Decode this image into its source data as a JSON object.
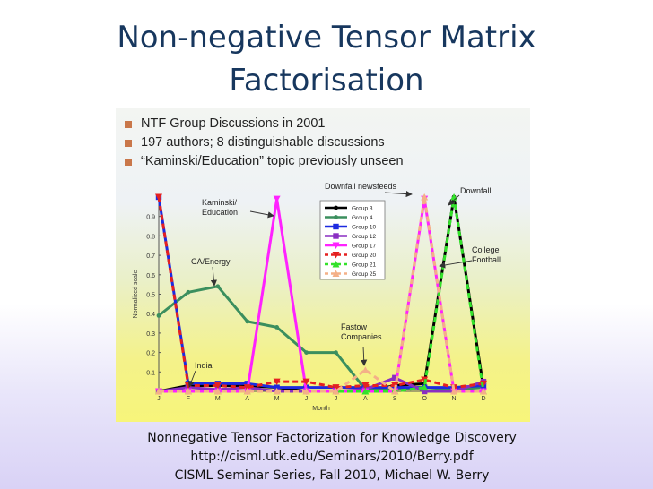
{
  "slide": {
    "title_line1": "Non-negative Tensor Matrix",
    "title_line2": "Factorisation",
    "bullets": [
      "NTF Group Discussions in 2001",
      "197 authors; 8 distinguishable discussions",
      "“Kaminski/Education” topic previously unseen"
    ],
    "caption_line1": "Nonnegative Tensor Factorization for Knowledge Discovery",
    "caption_line2": "http://cisml.utk.edu/Seminars/2010/Berry.pdf",
    "caption_line3": "CISML Seminar Series, Fall 2010, Michael W. Berry",
    "colors": {
      "title": "#17375e",
      "bullet_square": "#c9774a"
    }
  },
  "chart_data": {
    "type": "line",
    "title": "",
    "xlabel": "Month",
    "ylabel": "Normalized scale",
    "categories": [
      "J",
      "F",
      "M",
      "A",
      "M",
      "J",
      "J",
      "A",
      "S",
      "O",
      "N",
      "D"
    ],
    "yticks": [
      "0.1",
      "0.2",
      "0.3",
      "0.4",
      "0.5",
      "0.6",
      "0.7",
      "0.8",
      "0.9"
    ],
    "ylim": [
      0,
      1
    ],
    "grid": false,
    "legend_position": "top-center",
    "series": [
      {
        "name": "Group 3",
        "color": "#000000",
        "dash": false,
        "marker": "circle",
        "values": [
          0.0,
          0.03,
          0.03,
          0.03,
          0.02,
          0.0,
          0.0,
          0.0,
          0.03,
          0.04,
          1.0,
          0.02
        ]
      },
      {
        "name": "Group 4",
        "color": "#3b8f5e",
        "dash": false,
        "marker": "circle",
        "values": [
          0.39,
          0.51,
          0.54,
          0.36,
          0.33,
          0.2,
          0.2,
          0.01,
          0.01,
          0.02,
          0.01,
          0.02
        ]
      },
      {
        "name": "Group 10",
        "color": "#1c2ae0",
        "dash": false,
        "marker": "square",
        "values": [
          1.0,
          0.04,
          0.04,
          0.04,
          0.02,
          0.02,
          0.02,
          0.02,
          0.02,
          0.02,
          0.02,
          0.03
        ]
      },
      {
        "name": "Group 12",
        "color": "#8a2ec2",
        "dash": false,
        "marker": "square",
        "values": [
          0.0,
          0.02,
          0.01,
          0.02,
          0.0,
          0.0,
          0.0,
          0.01,
          0.07,
          0.0,
          0.0,
          0.05
        ]
      },
      {
        "name": "Group 17",
        "color": "#ff22ff",
        "dash": false,
        "marker": "triangle-down",
        "values": [
          0.0,
          0.0,
          0.0,
          0.0,
          0.99,
          0.0,
          0.0,
          0.0,
          0.0,
          0.99,
          0.0,
          0.0
        ]
      },
      {
        "name": "Group 20",
        "color": "#e52020",
        "dash": true,
        "marker": "triangle-down",
        "values": [
          1.0,
          0.03,
          0.03,
          0.02,
          0.05,
          0.05,
          0.02,
          0.03,
          0.03,
          0.06,
          0.02,
          0.04
        ]
      },
      {
        "name": "Group 21",
        "color": "#33e22b",
        "dash": true,
        "marker": "triangle-up",
        "values": [
          0.0,
          0.0,
          0.0,
          0.0,
          0.0,
          0.0,
          0.0,
          0.0,
          0.0,
          0.02,
          1.0,
          0.0
        ]
      },
      {
        "name": "Group 25",
        "color": "#f4b088",
        "dash": true,
        "marker": "triangle-up",
        "values": [
          0.0,
          0.0,
          0.0,
          0.0,
          0.0,
          0.0,
          0.0,
          0.11,
          0.0,
          1.0,
          0.0,
          0.0
        ]
      }
    ],
    "annotations": [
      {
        "text": [
          "Kaminski/",
          "Education"
        ]
      },
      {
        "text": [
          "CA/Energy"
        ]
      },
      {
        "text": [
          "India"
        ]
      },
      {
        "text": [
          "Fastow",
          "Companies"
        ]
      },
      {
        "text": [
          "Downfall newsfeeds"
        ]
      },
      {
        "text": [
          "Downfall"
        ]
      },
      {
        "text": [
          "College",
          "Football"
        ]
      }
    ]
  }
}
